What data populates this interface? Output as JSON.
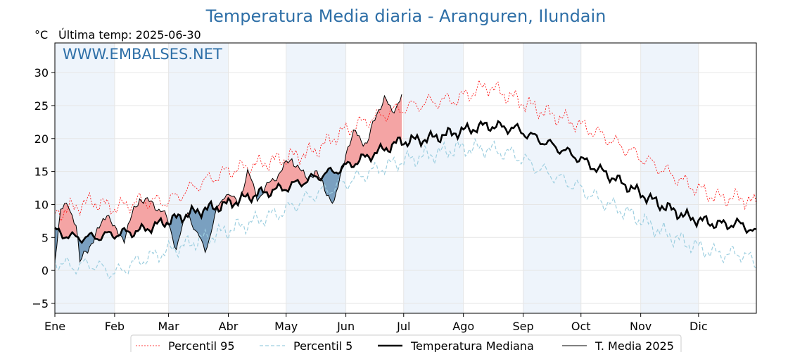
{
  "chart_data": {
    "type": "line",
    "title": "Temperatura Media diaria - Aranguren, Ilundain",
    "unit_label": "°C",
    "last_temp_label": "Última temp: 2025-06-30",
    "watermark": "WWW.EMBALSES.NET",
    "ylim": [
      -6.5,
      34.5
    ],
    "yticks": [
      -5,
      0,
      5,
      10,
      15,
      20,
      25,
      30
    ],
    "months": [
      "Ene",
      "Feb",
      "Mar",
      "Abr",
      "May",
      "Jun",
      "Jul",
      "Ago",
      "Sep",
      "Oct",
      "Nov",
      "Dic"
    ],
    "grid": true,
    "legend_position": "bottom",
    "colors": {
      "title": "#2e6fa7",
      "p95": "#ff0000",
      "p5": "#9ecfe0",
      "median": "#000000",
      "media2025": "#000000",
      "above": "#f4a4a4",
      "below": "#7aa0c0",
      "band": "#eef4fb"
    },
    "series": [
      {
        "name": "Percentil 95",
        "key": "p95",
        "anchors": [
          [
            1,
            8.5
          ],
          [
            10,
            9.5
          ],
          [
            20,
            10.5
          ],
          [
            32,
            9.5
          ],
          [
            45,
            10.5
          ],
          [
            60,
            10.5
          ],
          [
            75,
            13
          ],
          [
            90,
            15
          ],
          [
            105,
            16
          ],
          [
            120,
            17
          ],
          [
            135,
            18
          ],
          [
            150,
            21
          ],
          [
            165,
            23
          ],
          [
            180,
            24.5
          ],
          [
            195,
            25.5
          ],
          [
            210,
            26
          ],
          [
            225,
            28
          ],
          [
            240,
            26
          ],
          [
            255,
            24
          ],
          [
            270,
            22.5
          ],
          [
            285,
            20.5
          ],
          [
            300,
            18
          ],
          [
            315,
            15.5
          ],
          [
            330,
            13
          ],
          [
            345,
            11
          ],
          [
            358,
            11
          ],
          [
            365,
            10
          ]
        ]
      },
      {
        "name": "Percentil 5",
        "key": "p5",
        "anchors": [
          [
            1,
            1.5
          ],
          [
            10,
            0.5
          ],
          [
            20,
            1
          ],
          [
            32,
            -0.5
          ],
          [
            45,
            1.5
          ],
          [
            60,
            3
          ],
          [
            75,
            4.5
          ],
          [
            90,
            6
          ],
          [
            105,
            7.5
          ],
          [
            120,
            9
          ],
          [
            135,
            11.5
          ],
          [
            150,
            13
          ],
          [
            165,
            15
          ],
          [
            180,
            16.5
          ],
          [
            195,
            17.5
          ],
          [
            210,
            18.5
          ],
          [
            225,
            18.5
          ],
          [
            240,
            17.5
          ],
          [
            255,
            15
          ],
          [
            270,
            13
          ],
          [
            285,
            10.5
          ],
          [
            300,
            8.5
          ],
          [
            315,
            6
          ],
          [
            330,
            4
          ],
          [
            345,
            2.5
          ],
          [
            358,
            2.5
          ],
          [
            365,
            1
          ]
        ]
      },
      {
        "name": "Temperatura Mediana",
        "key": "median",
        "anchors": [
          [
            1,
            6
          ],
          [
            10,
            5
          ],
          [
            20,
            5
          ],
          [
            32,
            5.5
          ],
          [
            45,
            6
          ],
          [
            60,
            7.5
          ],
          [
            75,
            9
          ],
          [
            90,
            10
          ],
          [
            105,
            11.5
          ],
          [
            120,
            12.5
          ],
          [
            135,
            14
          ],
          [
            150,
            15.5
          ],
          [
            165,
            17.5
          ],
          [
            180,
            19.5
          ],
          [
            195,
            20
          ],
          [
            210,
            21
          ],
          [
            225,
            22
          ],
          [
            240,
            21.5
          ],
          [
            255,
            19.5
          ],
          [
            270,
            17.5
          ],
          [
            285,
            15
          ],
          [
            300,
            12.5
          ],
          [
            315,
            10
          ],
          [
            330,
            8
          ],
          [
            345,
            7
          ],
          [
            358,
            7
          ],
          [
            365,
            5.5
          ]
        ]
      },
      {
        "name": "T. Media 2025",
        "key": "media2025",
        "anchors": [
          [
            1,
            2
          ],
          [
            4,
            9
          ],
          [
            8,
            10
          ],
          [
            12,
            7
          ],
          [
            14,
            1
          ],
          [
            17,
            3
          ],
          [
            22,
            5
          ],
          [
            28,
            9
          ],
          [
            32,
            6
          ],
          [
            37,
            5
          ],
          [
            42,
            9
          ],
          [
            45,
            11
          ],
          [
            52,
            10
          ],
          [
            57,
            9
          ],
          [
            60,
            7
          ],
          [
            64,
            3.5
          ],
          [
            70,
            9
          ],
          [
            74,
            6
          ],
          [
            79,
            3
          ],
          [
            85,
            9
          ],
          [
            90,
            12
          ],
          [
            96,
            10
          ],
          [
            101,
            15
          ],
          [
            106,
            11
          ],
          [
            112,
            13
          ],
          [
            118,
            15
          ],
          [
            124,
            17
          ],
          [
            131,
            14
          ],
          [
            136,
            15
          ],
          [
            142,
            12
          ],
          [
            146,
            10
          ],
          [
            152,
            18
          ],
          [
            157,
            21
          ],
          [
            163,
            19
          ],
          [
            168,
            24
          ],
          [
            172,
            26
          ],
          [
            176,
            24
          ],
          [
            181,
            26.5
          ]
        ]
      }
    ]
  },
  "legend": {
    "p95": "Percentil 95",
    "p5": "Percentil 5",
    "median": "Temperatura Mediana",
    "media2025": "T. Media 2025"
  }
}
